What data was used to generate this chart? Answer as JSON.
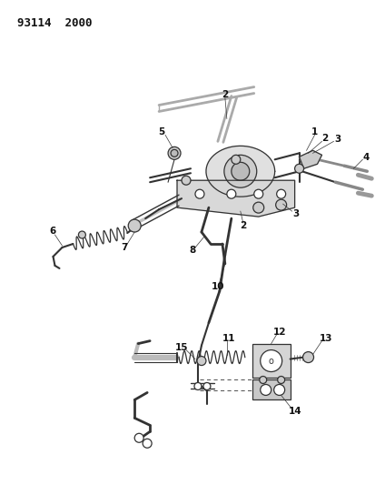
{
  "title": "93114  2000",
  "bg": "#ffffff",
  "lc": "#333333",
  "fig_w": 4.14,
  "fig_h": 5.33,
  "dpi": 100
}
